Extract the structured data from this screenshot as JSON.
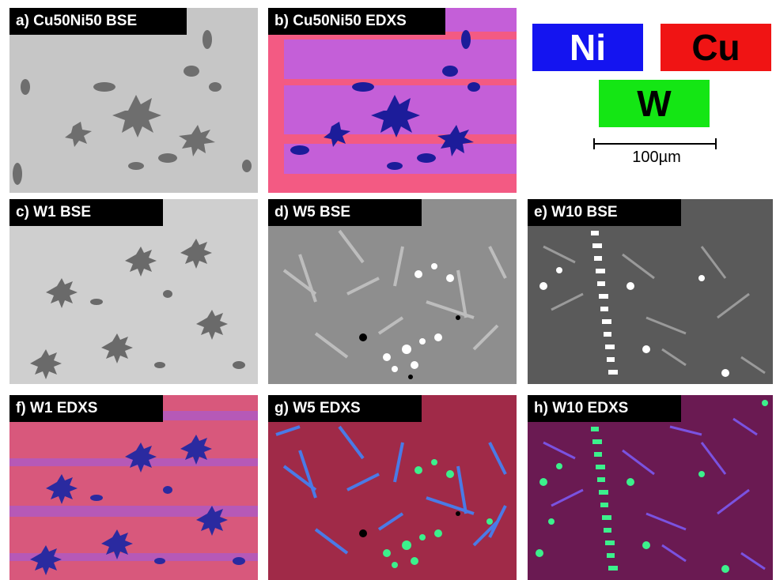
{
  "panels": {
    "a": {
      "label": "a) Cu50Ni50 BSE"
    },
    "b": {
      "label": "b) Cu50Ni50 EDXS"
    },
    "c": {
      "label": "c) W1 BSE"
    },
    "d": {
      "label": "d) W5 BSE"
    },
    "e": {
      "label": "e) W10 BSE"
    },
    "f": {
      "label": "f) W1 EDXS"
    },
    "g": {
      "label": "g) W5 EDXS"
    },
    "h": {
      "label": "h) W10 EDXS"
    }
  },
  "legend": {
    "ni": {
      "text": "Ni",
      "color": "#1414f0",
      "text_color": "#ffffff"
    },
    "cu": {
      "text": "Cu",
      "color": "#f01414",
      "text_color": "#000000"
    },
    "w": {
      "text": "W",
      "color": "#14e614",
      "text_color": "#000000"
    }
  },
  "scale_bar": {
    "text": "100µm"
  }
}
